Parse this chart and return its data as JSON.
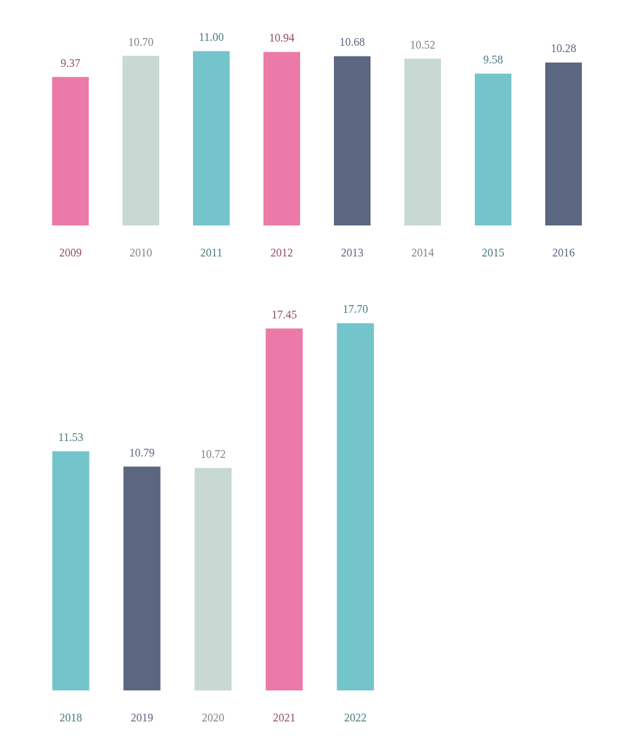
{
  "chart_data": [
    {
      "type": "bar",
      "categories": [
        "2009",
        "2010",
        "2011",
        "2012",
        "2013",
        "2014",
        "2015",
        "2016"
      ],
      "values": [
        9.37,
        10.7,
        11.0,
        10.94,
        10.68,
        10.52,
        9.58,
        10.28
      ],
      "value_labels": [
        "9.37",
        "10.70",
        "11.00",
        "10.94",
        "10.68",
        "10.52",
        "9.58",
        "10.28"
      ],
      "colors": [
        "#ec7aa8",
        "#c8d8d3",
        "#74c4cc",
        "#ec7aa8",
        "#5b6680",
        "#c8d8d3",
        "#74c4cc",
        "#5b6680"
      ]
    },
    {
      "type": "bar",
      "categories": [
        "2018",
        "2019",
        "2020",
        "2021",
        "2022"
      ],
      "values": [
        11.53,
        10.79,
        10.72,
        17.45,
        17.7
      ],
      "value_labels": [
        "11.53",
        "10.79",
        "10.72",
        "17.45",
        "17.70"
      ],
      "colors": [
        "#74c4cc",
        "#5b6680",
        "#c8d8d3",
        "#ec7aa8",
        "#74c4cc"
      ]
    }
  ]
}
